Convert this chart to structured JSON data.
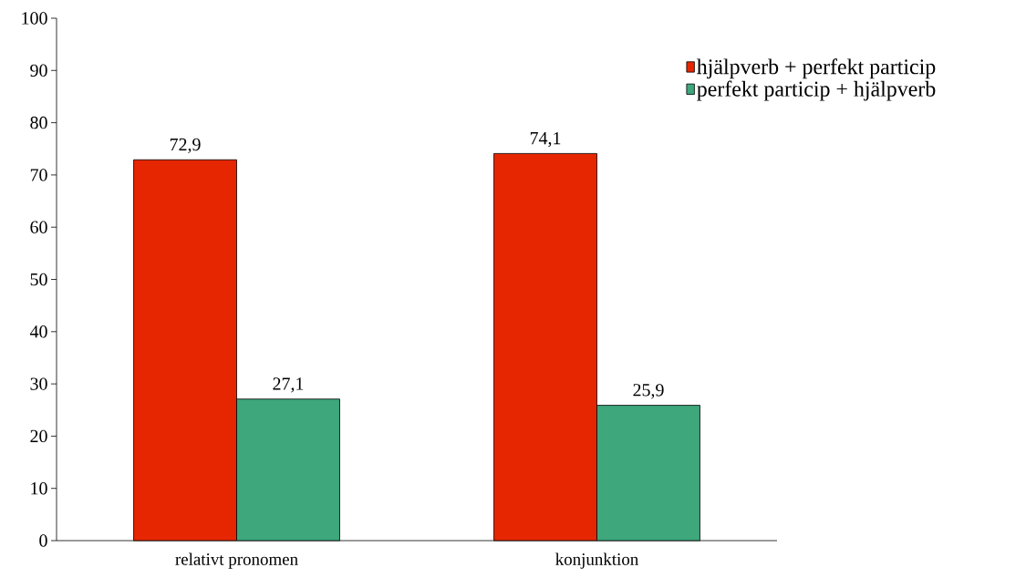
{
  "chart_data": {
    "type": "bar",
    "categories": [
      "relativt pronomen",
      "konjunktion"
    ],
    "series": [
      {
        "name": "hjälpverb + perfekt particip",
        "color": "#e62600",
        "values": [
          72.9,
          74.1
        ],
        "value_labels": [
          "72,9",
          "74,1"
        ]
      },
      {
        "name": "perfekt particip + hjälpverb",
        "color": "#3ea77c",
        "values": [
          27.1,
          25.9
        ],
        "value_labels": [
          "27,1",
          "25,9"
        ]
      }
    ],
    "ylim": [
      0,
      100
    ],
    "yticks": [
      0,
      10,
      20,
      30,
      40,
      50,
      60,
      70,
      80,
      90,
      100
    ],
    "grid": false,
    "legend": "top right"
  }
}
